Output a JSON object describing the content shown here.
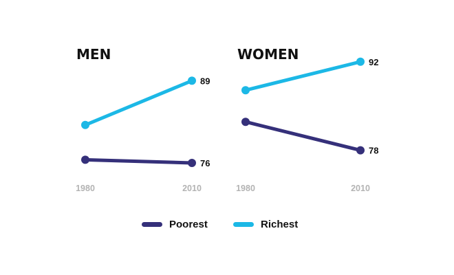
{
  "colors": {
    "poorest": "#35307a",
    "richest": "#1cb8e6",
    "tick": "#b3b3b3",
    "text": "#111111"
  },
  "legend": {
    "poorest_label": "Poorest",
    "richest_label": "Richest"
  },
  "chart_data": [
    {
      "type": "line",
      "title": "MEN",
      "x": [
        "1980",
        "2010"
      ],
      "series": [
        {
          "name": "Poorest",
          "values": [
            76.5,
            76
          ],
          "labels": [
            "",
            "76"
          ]
        },
        {
          "name": "Richest",
          "values": [
            82,
            89
          ],
          "labels": [
            "",
            "89"
          ]
        }
      ]
    },
    {
      "type": "line",
      "title": "WOMEN",
      "x": [
        "1980",
        "2010"
      ],
      "series": [
        {
          "name": "Poorest",
          "values": [
            82.5,
            78
          ],
          "labels": [
            "",
            "78"
          ]
        },
        {
          "name": "Richest",
          "values": [
            87.5,
            92
          ],
          "labels": [
            "",
            "92"
          ]
        }
      ]
    }
  ]
}
